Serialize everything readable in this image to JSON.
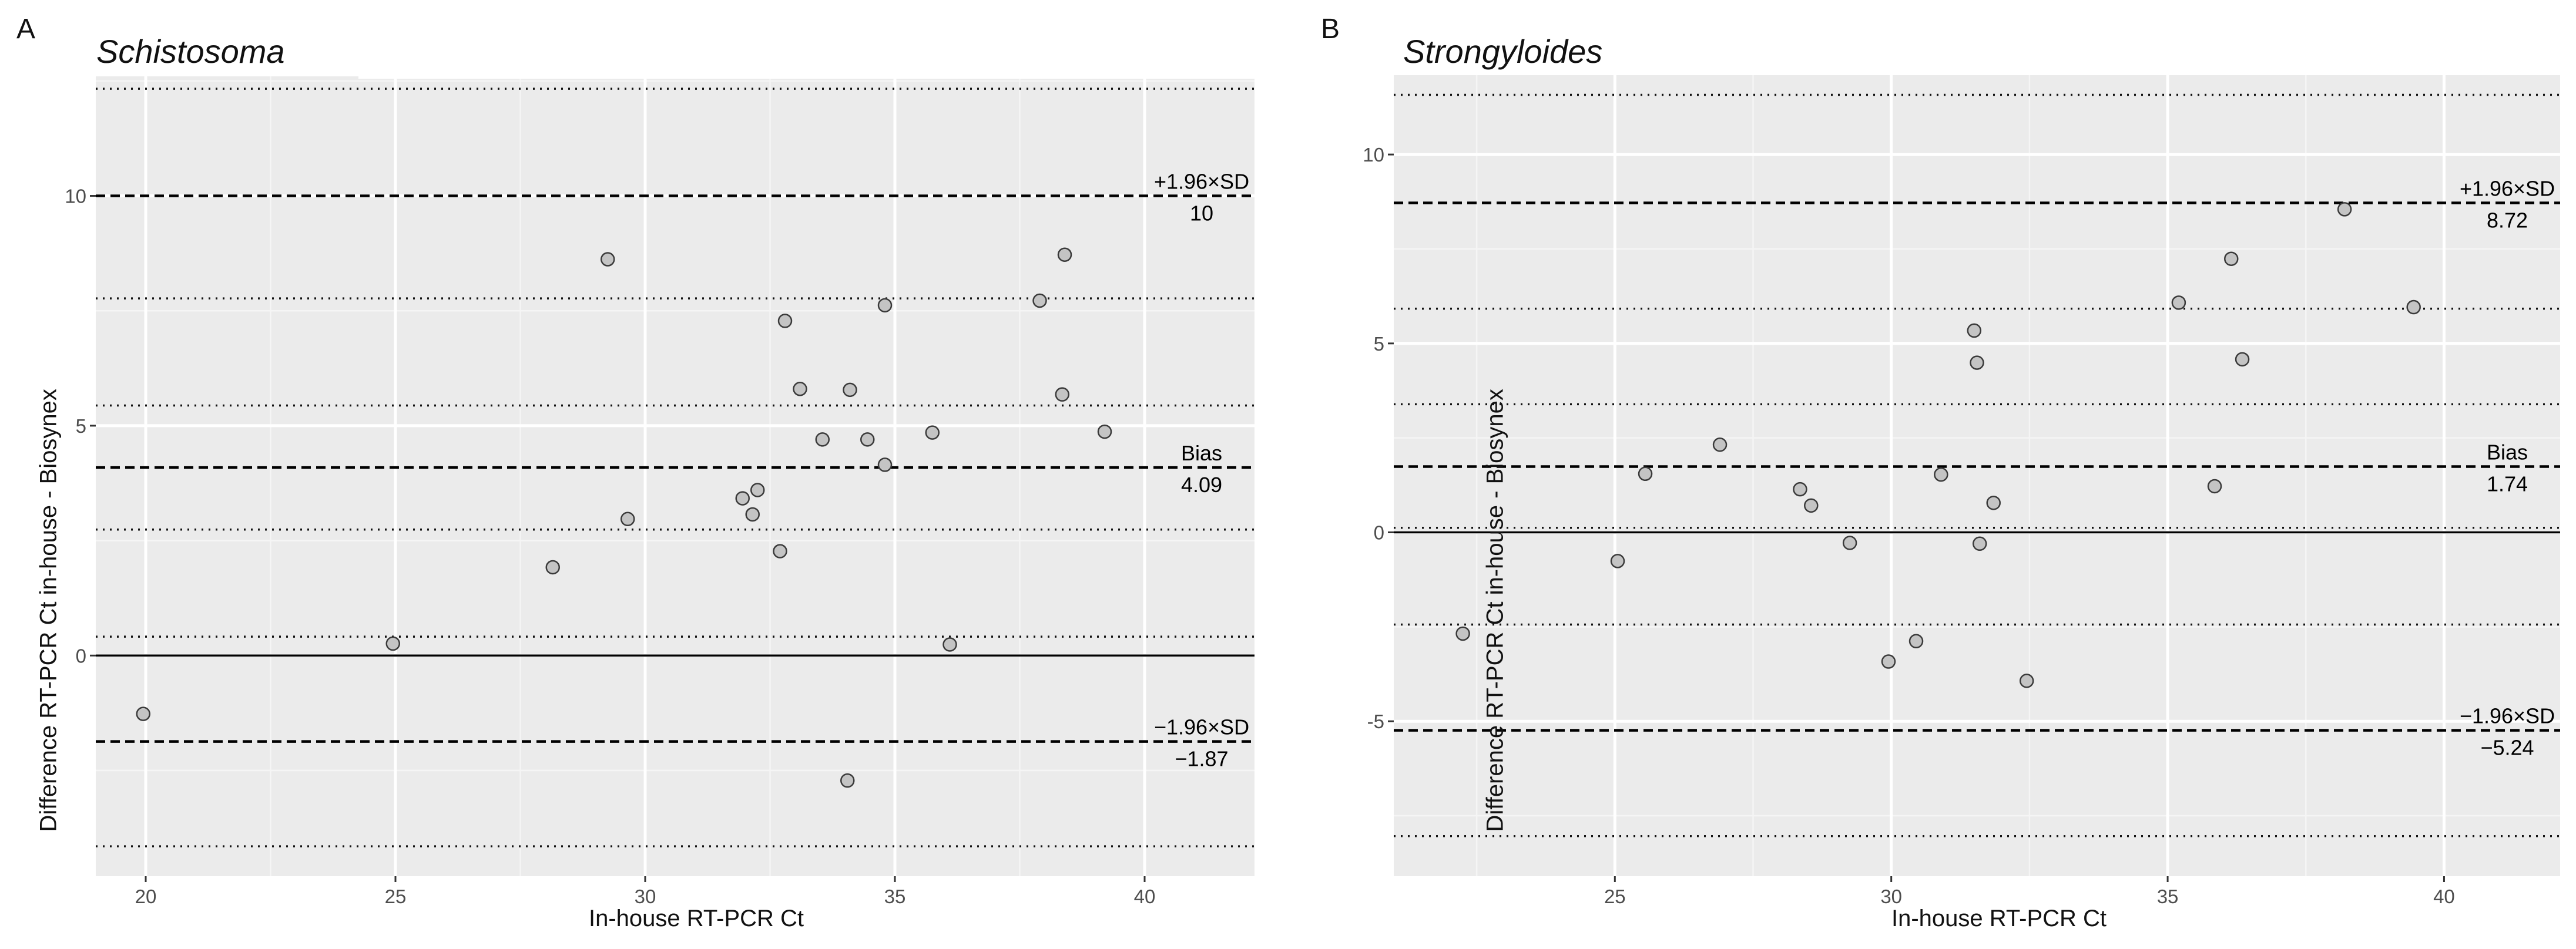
{
  "chart_data": [
    {
      "panel_label": "A",
      "type": "scatter",
      "title": "Schistosoma",
      "xlabel": "In-house RT-PCR Ct",
      "ylabel": "Difference RT-PCR Ct in-house - Biosynex",
      "xlim": [
        19,
        42.2
      ],
      "ylim": [
        -4.8,
        12.6
      ],
      "xticks": [
        20,
        25,
        30,
        35,
        40
      ],
      "yticks": [
        0,
        5,
        10
      ],
      "grid": true,
      "points": [
        {
          "x": 19.95,
          "y": -1.27
        },
        {
          "x": 24.95,
          "y": 0.26
        },
        {
          "x": 28.15,
          "y": 1.92
        },
        {
          "x": 29.25,
          "y": 8.62
        },
        {
          "x": 29.65,
          "y": 2.97
        },
        {
          "x": 31.95,
          "y": 3.42
        },
        {
          "x": 32.15,
          "y": 3.07
        },
        {
          "x": 32.25,
          "y": 3.6
        },
        {
          "x": 32.7,
          "y": 2.27
        },
        {
          "x": 32.8,
          "y": 7.28
        },
        {
          "x": 33.1,
          "y": 5.8
        },
        {
          "x": 33.55,
          "y": 4.7
        },
        {
          "x": 34.1,
          "y": 5.78
        },
        {
          "x": 34.05,
          "y": -2.72
        },
        {
          "x": 34.45,
          "y": 4.7
        },
        {
          "x": 34.8,
          "y": 7.62
        },
        {
          "x": 34.8,
          "y": 4.15
        },
        {
          "x": 35.75,
          "y": 4.85
        },
        {
          "x": 36.1,
          "y": 0.24
        },
        {
          "x": 37.9,
          "y": 7.72
        },
        {
          "x": 38.35,
          "y": 5.68
        },
        {
          "x": 38.4,
          "y": 8.72
        },
        {
          "x": 39.2,
          "y": 4.87
        }
      ],
      "zero_line": 0,
      "dashed_lines": [
        {
          "y": 10,
          "label": "+1.96×SD",
          "value_label": "10"
        },
        {
          "y": 4.09,
          "label": "Bias",
          "value_label": "4.09"
        },
        {
          "y": -1.87,
          "label": "−1.96×SD",
          "value_label": "−1.87"
        }
      ],
      "dotted_lines": [
        12.33,
        7.77,
        5.44,
        2.74,
        0.41,
        -4.15
      ]
    },
    {
      "panel_label": "B",
      "type": "scatter",
      "title": "Strongyloides",
      "xlabel": "In-house RT-PCR Ct",
      "ylabel": "Difference RT-PCR Ct in-house - Biosynex",
      "xlim": [
        21,
        42.1
      ],
      "ylim": [
        -9.1,
        12.1
      ],
      "xticks": [
        25,
        30,
        35,
        40
      ],
      "yticks": [
        -5,
        0,
        5,
        10
      ],
      "grid": true,
      "points": [
        {
          "x": 22.25,
          "y": -2.68
        },
        {
          "x": 25.05,
          "y": -0.76
        },
        {
          "x": 25.55,
          "y": 1.55
        },
        {
          "x": 26.9,
          "y": 2.32
        },
        {
          "x": 28.35,
          "y": 1.14
        },
        {
          "x": 28.55,
          "y": 0.71
        },
        {
          "x": 29.25,
          "y": -0.28
        },
        {
          "x": 29.95,
          "y": -3.42
        },
        {
          "x": 30.45,
          "y": -2.88
        },
        {
          "x": 30.9,
          "y": 1.53
        },
        {
          "x": 31.5,
          "y": 5.34
        },
        {
          "x": 31.55,
          "y": 4.49
        },
        {
          "x": 31.6,
          "y": -0.3
        },
        {
          "x": 31.85,
          "y": 0.78
        },
        {
          "x": 32.45,
          "y": -3.93
        },
        {
          "x": 35.2,
          "y": 6.08
        },
        {
          "x": 35.85,
          "y": 1.22
        },
        {
          "x": 36.15,
          "y": 7.24
        },
        {
          "x": 36.35,
          "y": 4.58
        },
        {
          "x": 38.2,
          "y": 8.55
        },
        {
          "x": 39.45,
          "y": 5.96
        }
      ],
      "zero_line": 0,
      "dashed_lines": [
        {
          "y": 8.72,
          "label": "+1.96×SD",
          "value_label": "8.72"
        },
        {
          "y": 1.74,
          "label": "Bias",
          "value_label": "1.74"
        },
        {
          "y": -5.24,
          "label": "−1.96×SD",
          "value_label": "−5.24"
        }
      ],
      "dotted_lines": [
        11.58,
        5.92,
        3.39,
        0.12,
        -2.44,
        -8.04
      ]
    }
  ]
}
